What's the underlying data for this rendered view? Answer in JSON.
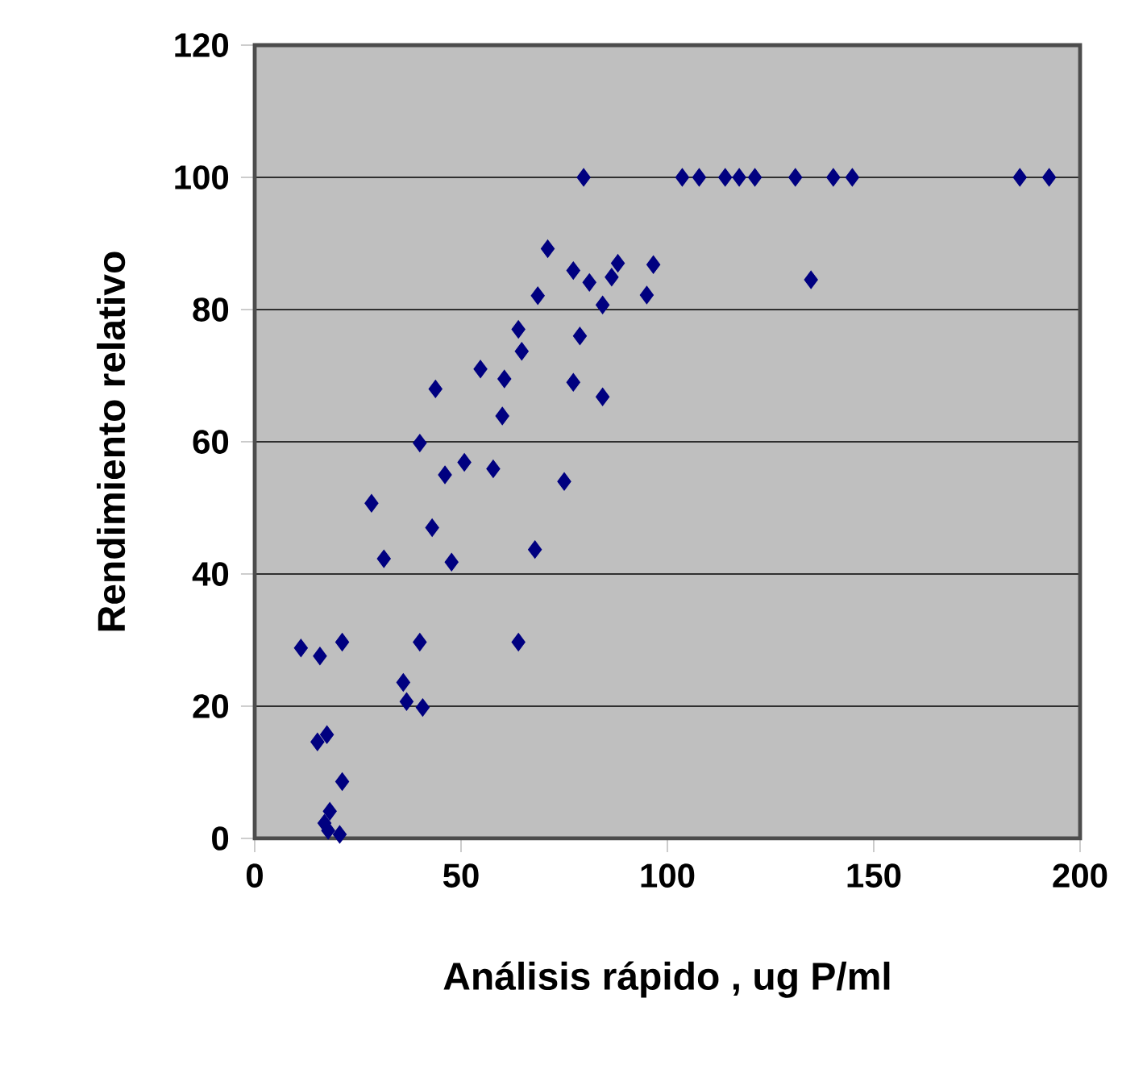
{
  "chart_data": {
    "type": "scatter",
    "xlabel": "Análisis rápido , ug P/ml",
    "ylabel": "Rendimiento relativo",
    "xlim": [
      0,
      200
    ],
    "ylim": [
      0,
      120
    ],
    "xticks": [
      0,
      50,
      100,
      150,
      200
    ],
    "yticks": [
      0,
      20,
      40,
      60,
      80,
      100,
      120
    ],
    "grid": "y",
    "marker": "diamond",
    "series": [
      {
        "color": "#000080",
        "x": [
          11.2,
          15.8,
          21.2,
          40,
          63.9,
          36,
          36.8,
          40.7,
          15.2,
          17.5,
          21.2,
          18.2,
          16.9,
          17.8,
          20.6,
          28.3,
          43,
          31.3,
          47.7,
          67.9,
          40,
          46.1,
          50.8,
          57.8,
          75,
          54.7,
          60.5,
          43.8,
          63.9,
          64.7,
          60,
          77.2,
          84.3,
          78.8,
          71,
          77.2,
          81.1,
          88,
          86.5,
          96.6,
          68.6,
          84.3,
          95,
          79.7,
          103.6,
          107.7,
          114,
          117.4,
          121.2,
          131,
          140.2,
          144.8,
          185.4,
          192.5,
          134.8
        ],
        "values": [
          28.8,
          27.6,
          29.7,
          29.7,
          29.7,
          23.6,
          20.7,
          19.8,
          14.6,
          15.7,
          8.6,
          4.1,
          2.3,
          1.2,
          0.6,
          50.7,
          47,
          42.3,
          41.8,
          43.7,
          59.8,
          55,
          56.9,
          55.9,
          54,
          71,
          69.5,
          68,
          77,
          73.7,
          63.9,
          69,
          66.8,
          76,
          89.2,
          85.9,
          84.1,
          87,
          84.9,
          86.8,
          82.1,
          80.7,
          82.2,
          100,
          100,
          100,
          100,
          100,
          100,
          100,
          100,
          100,
          100,
          100,
          84.5
        ]
      }
    ]
  }
}
